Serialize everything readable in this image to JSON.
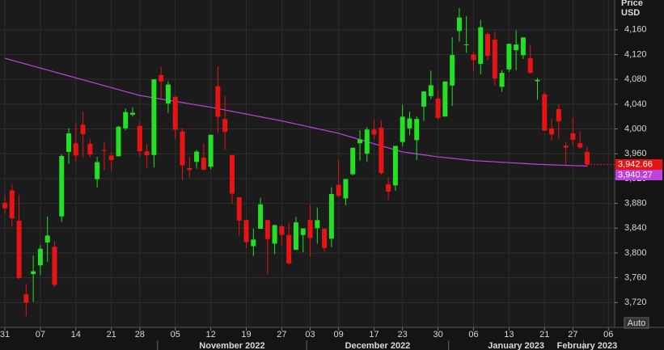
{
  "chart_data": {
    "type": "candlestick",
    "ylabel": [
      "Price",
      "USD"
    ],
    "button_label": "Auto",
    "up_color": "#22e022",
    "down_color": "#e81414",
    "grid": true,
    "ylim": [
      3680,
      4208
    ],
    "yticks": [
      {
        "value": 3720,
        "label": "3,720"
      },
      {
        "value": 3760,
        "label": "3,760"
      },
      {
        "value": 3800,
        "label": "3,800"
      },
      {
        "value": 3840,
        "label": "3,840"
      },
      {
        "value": 3880,
        "label": "3,880"
      },
      {
        "value": 3920,
        "label": "3,920"
      },
      {
        "value": 3960,
        "label": "3,960"
      },
      {
        "value": 4000,
        "label": "4,000"
      },
      {
        "value": 4040,
        "label": "4,040"
      },
      {
        "value": 4080,
        "label": "4,080"
      },
      {
        "value": 4120,
        "label": "4,120"
      },
      {
        "value": 4160,
        "label": "4,160"
      }
    ],
    "xticks": [
      {
        "value": "2022-10-31",
        "label": "31"
      },
      {
        "value": "2022-11-07",
        "label": "07"
      },
      {
        "value": "2022-11-14",
        "label": "14"
      },
      {
        "value": "2022-11-21",
        "label": "21"
      },
      {
        "value": "2022-11-28",
        "label": "28"
      },
      {
        "value": "2022-12-05",
        "label": "05"
      },
      {
        "value": "2022-12-12",
        "label": "12"
      },
      {
        "value": "2022-12-19",
        "label": "19"
      },
      {
        "value": "2022-12-27",
        "label": "27"
      },
      {
        "value": "2023-01-03",
        "label": "03"
      },
      {
        "value": "2023-01-09",
        "label": "09"
      },
      {
        "value": "2023-01-17",
        "label": "17"
      },
      {
        "value": "2023-01-23",
        "label": "23"
      },
      {
        "value": "2023-01-30",
        "label": "30"
      },
      {
        "value": "2023-02-06",
        "label": "06"
      },
      {
        "value": "2023-02-13",
        "label": "13"
      },
      {
        "value": "2023-02-21",
        "label": "21"
      },
      {
        "value": "2023-02-27",
        "label": "27"
      },
      {
        "value": "2023-03-06",
        "label": "06"
      }
    ],
    "month_labels": [
      "November 2022",
      "December 2022",
      "January 2023",
      "February 2023"
    ],
    "x": [
      "2022-10-31",
      "2022-11-01",
      "2022-11-02",
      "2022-11-03",
      "2022-11-04",
      "2022-11-07",
      "2022-11-08",
      "2022-11-09",
      "2022-11-10",
      "2022-11-11",
      "2022-11-14",
      "2022-11-15",
      "2022-11-16",
      "2022-11-17",
      "2022-11-18",
      "2022-11-21",
      "2022-11-22",
      "2022-11-23",
      "2022-11-25",
      "2022-11-28",
      "2022-11-29",
      "2022-11-30",
      "2022-12-01",
      "2022-12-02",
      "2022-12-05",
      "2022-12-06",
      "2022-12-07",
      "2022-12-08",
      "2022-12-09",
      "2022-12-12",
      "2022-12-13",
      "2022-12-14",
      "2022-12-15",
      "2022-12-16",
      "2022-12-19",
      "2022-12-20",
      "2022-12-21",
      "2022-12-22",
      "2022-12-23",
      "2022-12-27",
      "2022-12-28",
      "2022-12-29",
      "2022-12-30",
      "2023-01-03",
      "2023-01-04",
      "2023-01-05",
      "2023-01-06",
      "2023-01-09",
      "2023-01-10",
      "2023-01-11",
      "2023-01-12",
      "2023-01-13",
      "2023-01-17",
      "2023-01-18",
      "2023-01-19",
      "2023-01-20",
      "2023-01-23",
      "2023-01-24",
      "2023-01-25",
      "2023-01-26",
      "2023-01-27",
      "2023-01-30",
      "2023-01-31",
      "2023-02-01",
      "2023-02-02",
      "2023-02-03",
      "2023-02-06",
      "2023-02-07",
      "2023-02-08",
      "2023-02-09",
      "2023-02-10",
      "2023-02-13",
      "2023-02-14",
      "2023-02-15",
      "2023-02-16",
      "2023-02-17",
      "2023-02-21",
      "2023-02-22",
      "2023-02-23",
      "2023-02-24",
      "2023-02-27",
      "2023-02-28",
      "2023-03-01"
    ],
    "open": [
      3881,
      3901,
      3852,
      3733,
      3766,
      3780,
      3817,
      3810,
      3859,
      3963,
      3977,
      4007,
      3976,
      3919,
      3966,
      3957,
      3956,
      4001,
      4023,
      4005,
      3964,
      3958,
      4087,
      4041,
      4052,
      3996,
      3937,
      3947,
      3954,
      3939,
      4069,
      4016,
      3958,
      3890,
      3853,
      3811,
      3839,
      3853,
      3815,
      3843,
      3829,
      3805,
      3829,
      3853,
      3840,
      3839,
      3823,
      3910,
      3888,
      3927,
      3977,
      3960,
      3999,
      4002,
      3911,
      3909,
      3979,
      4001,
      3982,
      4036,
      4053,
      4049,
      4020,
      4070,
      4158,
      4136,
      4120,
      4105,
      4153,
      4144,
      4068,
      4096,
      4127,
      4119,
      4114,
      4077,
      4056,
      4001,
      4032,
      3973,
      3993,
      3977,
      3963
    ],
    "high": [
      3893,
      3911,
      3894,
      3750,
      3796,
      3813,
      3859,
      3819,
      3959,
      4001,
      4009,
      4028,
      3983,
      3955,
      3979,
      3962,
      4005,
      4033,
      4035,
      4012,
      3976,
      4080,
      4100,
      4077,
      4052,
      4002,
      3956,
      3966,
      3977,
      3991,
      4101,
      4053,
      3958,
      3890,
      3854,
      3839,
      3889,
      3853,
      3846,
      3846,
      3849,
      3858,
      3840,
      3878,
      3873,
      3839,
      3906,
      3950,
      3919,
      3970,
      3998,
      4003,
      4015,
      4014,
      3922,
      3973,
      4039,
      4028,
      4020,
      4061,
      4094,
      4063,
      4077,
      4148,
      4195,
      4182,
      4124,
      4176,
      4156,
      4157,
      4095,
      4138,
      4159,
      4148,
      4136,
      4082,
      4060,
      4017,
      4040,
      3979,
      4018,
      3997,
      3971
    ],
    "low": [
      3863,
      3843,
      3758,
      3698,
      3721,
      3764,
      3786,
      3745,
      3850,
      3944,
      3947,
      3954,
      3954,
      3906,
      3933,
      3933,
      3956,
      3998,
      4020,
      3955,
      3937,
      3938,
      4050,
      4026,
      3984,
      3918,
      3922,
      3936,
      3933,
      3935,
      3993,
      3966,
      3879,
      3828,
      3808,
      3795,
      3839,
      3765,
      3798,
      3813,
      3781,
      3805,
      3801,
      3794,
      3815,
      3802,
      3809,
      3890,
      3877,
      3925,
      3949,
      3947,
      3984,
      3926,
      3886,
      3900,
      3972,
      3990,
      3950,
      4013,
      4048,
      4015,
      4020,
      4037,
      4141,
      4123,
      4093,
      4088,
      4111,
      4070,
      4060,
      4092,
      4095,
      4113,
      4089,
      4047,
      3997,
      3981,
      3983,
      3943,
      3973,
      3968,
      3939
    ],
    "close": [
      3871.98,
      3856.1,
      3759.69,
      3719.89,
      3770.55,
      3806.8,
      3828.11,
      3748.57,
      3956.37,
      3992.93,
      3957.25,
      3991.73,
      3958.79,
      3946.56,
      3965.34,
      3949.94,
      4003.58,
      4027.26,
      4026.12,
      3963.94,
      3957.63,
      4080.11,
      4076.57,
      4071.7,
      3998.84,
      3941.26,
      3933.92,
      3963.51,
      3934.38,
      3990.56,
      4019.65,
      3995.32,
      3895.75,
      3852.36,
      3817.66,
      3821.62,
      3878.44,
      3822.39,
      3844.82,
      3829.25,
      3783.22,
      3849.28,
      3839.5,
      3824.14,
      3852.97,
      3808.1,
      3895.08,
      3892.09,
      3919.25,
      3969.61,
      3983.17,
      3999.09,
      3990.97,
      3928.86,
      3898.85,
      3972.61,
      4019.81,
      4016.95,
      4016.22,
      4060.43,
      4070.56,
      4017.77,
      4076.6,
      4119.21,
      4179.76,
      4136.48,
      4111.08,
      4164.0,
      4117.86,
      4081.5,
      4090.46,
      4137.29,
      4136.13,
      4147.6,
      4090.41,
      4079.09,
      3997.34,
      3991.05,
      4012.32,
      3970.04,
      3982.24,
      3970.15,
      3942.66
    ],
    "last_price_label": "3,942.66",
    "moving_average": {
      "color": "#c040e0",
      "value_label": "3,940.27",
      "values": [
        4114,
        4110.8,
        4107.7,
        4104.5,
        4101.4,
        4098.2,
        4095.1,
        4091.9,
        4088.7,
        4085.6,
        4082.4,
        4079.3,
        4076.1,
        4073.0,
        4069.8,
        4066.6,
        4063.5,
        4060.3,
        4057.2,
        4054,
        4052.1,
        4050.2,
        4048.3,
        4046.4,
        4044.5,
        4042.6,
        4040.7,
        4038.8,
        4036.9,
        4035,
        4032.8,
        4030.6,
        4028.4,
        4026.2,
        4024,
        4021.8,
        4019.6,
        4017.4,
        4015.2,
        4013,
        4010.5,
        4008,
        4005.5,
        4003,
        4000.5,
        3998,
        3995.5,
        3993,
        3989.6,
        3986.2,
        3982.8,
        3979.4,
        3976,
        3972.8,
        3969.5,
        3966.3,
        3963,
        3961.4,
        3959.8,
        3958.2,
        3956.6,
        3955,
        3953.8,
        3952.6,
        3951.4,
        3950.2,
        3949,
        3948.3,
        3947.7,
        3947,
        3946.3,
        3945.7,
        3945,
        3944.3,
        3943.7,
        3943,
        3942.6,
        3942.2,
        3941.8,
        3941.4,
        3941.0,
        3940.6,
        3940.27
      ]
    }
  }
}
